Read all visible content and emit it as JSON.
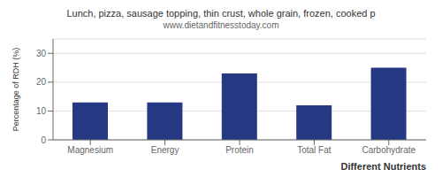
{
  "chart_data": {
    "type": "bar",
    "title": "Lunch, pizza, sausage topping, thin crust, whole grain, frozen, cooked p",
    "subtitle": "www.dietandfitnesstoday.com",
    "xlabel": "Different Nutrients",
    "ylabel": "Percentage of RDH (%)",
    "categories": [
      "Magnesium",
      "Energy",
      "Protein",
      "Total Fat",
      "Carbohydrate"
    ],
    "values": [
      13.0,
      13.0,
      23.0,
      12.0,
      25.0
    ],
    "color": "#253882",
    "ylim": [
      0,
      35
    ],
    "yticks": [
      0,
      10,
      20,
      30
    ],
    "grid": true
  }
}
